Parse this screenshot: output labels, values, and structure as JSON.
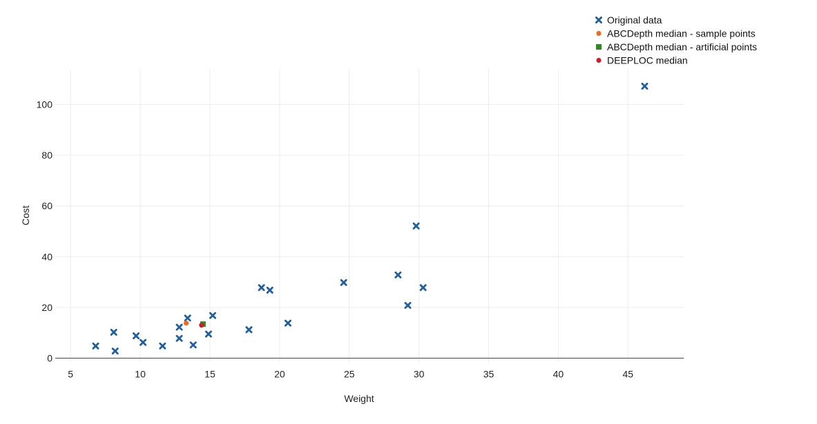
{
  "chart_data": {
    "type": "scatter",
    "xlabel": "Weight",
    "ylabel": "Cost",
    "xlim": [
      3.9,
      49
    ],
    "ylim": [
      -1.5,
      114
    ],
    "x_ticks": [
      5,
      10,
      15,
      20,
      25,
      30,
      35,
      40,
      45
    ],
    "y_ticks": [
      0,
      20,
      40,
      60,
      80,
      100
    ],
    "grid": true,
    "legend_position": "top-right",
    "series": [
      {
        "name": "Original data",
        "marker": "x",
        "color": "#1f5f9e",
        "points": [
          [
            6.8,
            4.8
          ],
          [
            8.1,
            10.2
          ],
          [
            8.2,
            2.8
          ],
          [
            9.7,
            8.8
          ],
          [
            10.2,
            6.2
          ],
          [
            11.6,
            4.8
          ],
          [
            12.8,
            12.2
          ],
          [
            12.8,
            7.8
          ],
          [
            13.4,
            15.8
          ],
          [
            13.8,
            5.2
          ],
          [
            14.9,
            9.5
          ],
          [
            15.2,
            16.8
          ],
          [
            17.8,
            11.2
          ],
          [
            18.7,
            27.8
          ],
          [
            19.3,
            26.8
          ],
          [
            20.6,
            13.8
          ],
          [
            24.6,
            29.8
          ],
          [
            28.5,
            32.8
          ],
          [
            29.2,
            20.8
          ],
          [
            29.8,
            52.1
          ],
          [
            30.3,
            27.8
          ],
          [
            46.2,
            107.2
          ]
        ]
      },
      {
        "name": "ABCDepth median - sample points",
        "marker": "circle",
        "color": "#f26b1d",
        "points": [
          [
            13.3,
            13.8
          ]
        ]
      },
      {
        "name": "ABCDepth median - artificial points",
        "marker": "square",
        "color": "#2e8b22",
        "points": [
          [
            14.5,
            13.4
          ]
        ]
      },
      {
        "name": "DEEPLOC median",
        "marker": "circle",
        "color": "#cc1f2e",
        "points": [
          [
            14.4,
            13.0
          ]
        ]
      }
    ]
  }
}
